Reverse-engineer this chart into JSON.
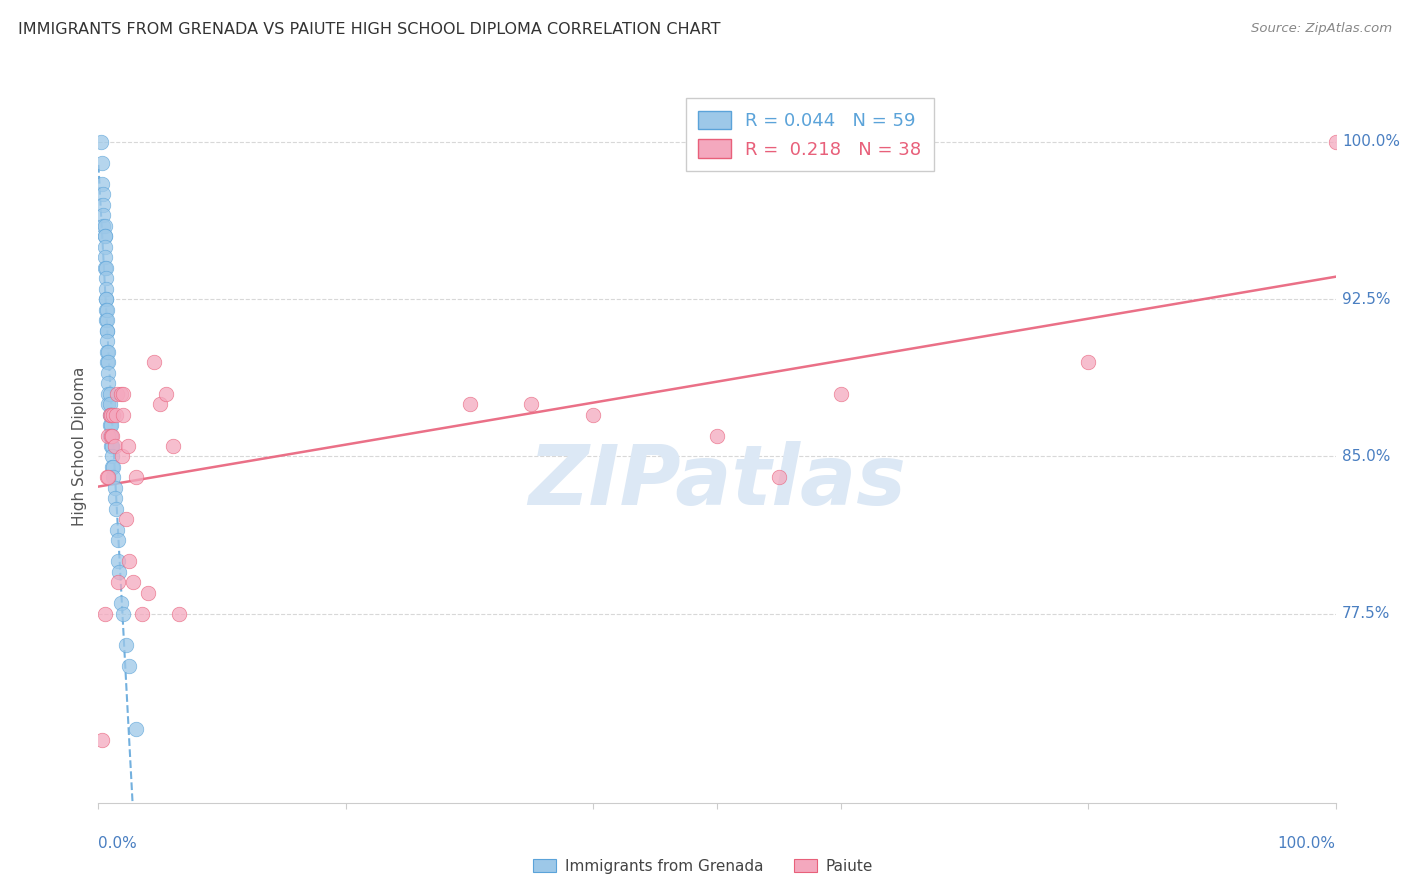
{
  "title": "IMMIGRANTS FROM GRENADA VS PAIUTE HIGH SCHOOL DIPLOMA CORRELATION CHART",
  "source": "Source: ZipAtlas.com",
  "ylabel": "High School Diploma",
  "ytick_labels": [
    "77.5%",
    "85.0%",
    "92.5%",
    "100.0%"
  ],
  "ytick_values": [
    0.775,
    0.85,
    0.925,
    1.0
  ],
  "xtick_labels": [
    "0.0%",
    "100.0%"
  ],
  "xtick_positions": [
    0.0,
    1.0
  ],
  "legend_label1": "Immigrants from Grenada",
  "legend_label2": "Paiute",
  "R1": "0.044",
  "N1": "59",
  "R2": "0.218",
  "N2": "38",
  "blue_color": "#9dc8e8",
  "pink_color": "#f4a8be",
  "blue_line_color": "#5ba3d9",
  "pink_line_color": "#e8607a",
  "axis_label_color": "#4a7fc1",
  "watermark_text": "ZIPatlas",
  "watermark_color": "#dce8f5",
  "blue_x": [
    0.002,
    0.003,
    0.003,
    0.004,
    0.004,
    0.004,
    0.004,
    0.005,
    0.005,
    0.005,
    0.005,
    0.005,
    0.005,
    0.006,
    0.006,
    0.006,
    0.006,
    0.006,
    0.006,
    0.006,
    0.007,
    0.007,
    0.007,
    0.007,
    0.007,
    0.007,
    0.007,
    0.008,
    0.008,
    0.008,
    0.008,
    0.008,
    0.008,
    0.009,
    0.009,
    0.009,
    0.009,
    0.009,
    0.01,
    0.01,
    0.01,
    0.01,
    0.011,
    0.011,
    0.011,
    0.012,
    0.012,
    0.013,
    0.013,
    0.014,
    0.015,
    0.016,
    0.016,
    0.017,
    0.018,
    0.02,
    0.022,
    0.025,
    0.03
  ],
  "blue_y": [
    1.0,
    0.99,
    0.98,
    0.975,
    0.97,
    0.965,
    0.96,
    0.96,
    0.955,
    0.955,
    0.95,
    0.945,
    0.94,
    0.94,
    0.935,
    0.93,
    0.925,
    0.925,
    0.92,
    0.915,
    0.92,
    0.915,
    0.91,
    0.91,
    0.905,
    0.9,
    0.895,
    0.9,
    0.895,
    0.89,
    0.885,
    0.88,
    0.875,
    0.88,
    0.875,
    0.87,
    0.865,
    0.86,
    0.87,
    0.865,
    0.86,
    0.855,
    0.855,
    0.85,
    0.845,
    0.845,
    0.84,
    0.835,
    0.83,
    0.825,
    0.815,
    0.81,
    0.8,
    0.795,
    0.78,
    0.775,
    0.76,
    0.75,
    0.72
  ],
  "pink_x": [
    0.003,
    0.005,
    0.007,
    0.008,
    0.008,
    0.009,
    0.01,
    0.01,
    0.011,
    0.012,
    0.013,
    0.014,
    0.015,
    0.016,
    0.018,
    0.019,
    0.02,
    0.02,
    0.022,
    0.024,
    0.025,
    0.028,
    0.03,
    0.035,
    0.04,
    0.045,
    0.05,
    0.055,
    0.06,
    0.065,
    0.3,
    0.35,
    0.4,
    0.5,
    0.55,
    0.6,
    0.8,
    1.0
  ],
  "pink_y": [
    0.715,
    0.775,
    0.84,
    0.86,
    0.84,
    0.87,
    0.87,
    0.86,
    0.86,
    0.87,
    0.855,
    0.87,
    0.88,
    0.79,
    0.88,
    0.85,
    0.88,
    0.87,
    0.82,
    0.855,
    0.8,
    0.79,
    0.84,
    0.775,
    0.785,
    0.895,
    0.875,
    0.88,
    0.855,
    0.775,
    0.875,
    0.875,
    0.87,
    0.86,
    0.84,
    0.88,
    0.895,
    1.0
  ],
  "xlim": [
    0.0,
    1.0
  ],
  "ylim": [
    0.685,
    1.025
  ],
  "grid_color": "#d8d8d8",
  "spine_color": "#cccccc"
}
